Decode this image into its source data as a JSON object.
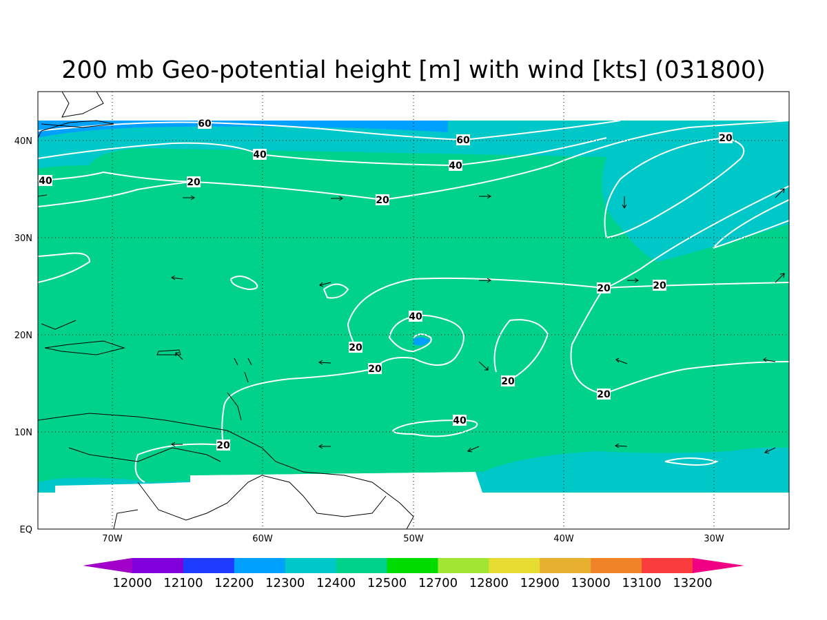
{
  "title": "200 mb Geo-potential height [m] with wind [kts] (031800)",
  "lat_labels": [
    "40N",
    "30N",
    "20N",
    "10N",
    "EQ"
  ],
  "lon_labels": [
    "70W",
    "60W",
    "50W",
    "40W",
    "30W"
  ],
  "contour_labels": [
    "60",
    "60",
    "40",
    "40",
    "40",
    "20",
    "20",
    "20",
    "20",
    "20",
    "40",
    "20",
    "20",
    "20",
    "20",
    "40",
    "20"
  ],
  "colorbar": {
    "colors": [
      "#a000c8",
      "#8200dc",
      "#1e3cff",
      "#00a0ff",
      "#00c8c8",
      "#00d28c",
      "#00dc00",
      "#a0e632",
      "#e6dc32",
      "#e6af2d",
      "#f08228",
      "#fa3c3c",
      "#f00082"
    ],
    "labels": [
      12000,
      12100,
      12200,
      12300,
      12400,
      12500,
      12700,
      12800,
      12900,
      13000,
      13100,
      13200
    ]
  }
}
